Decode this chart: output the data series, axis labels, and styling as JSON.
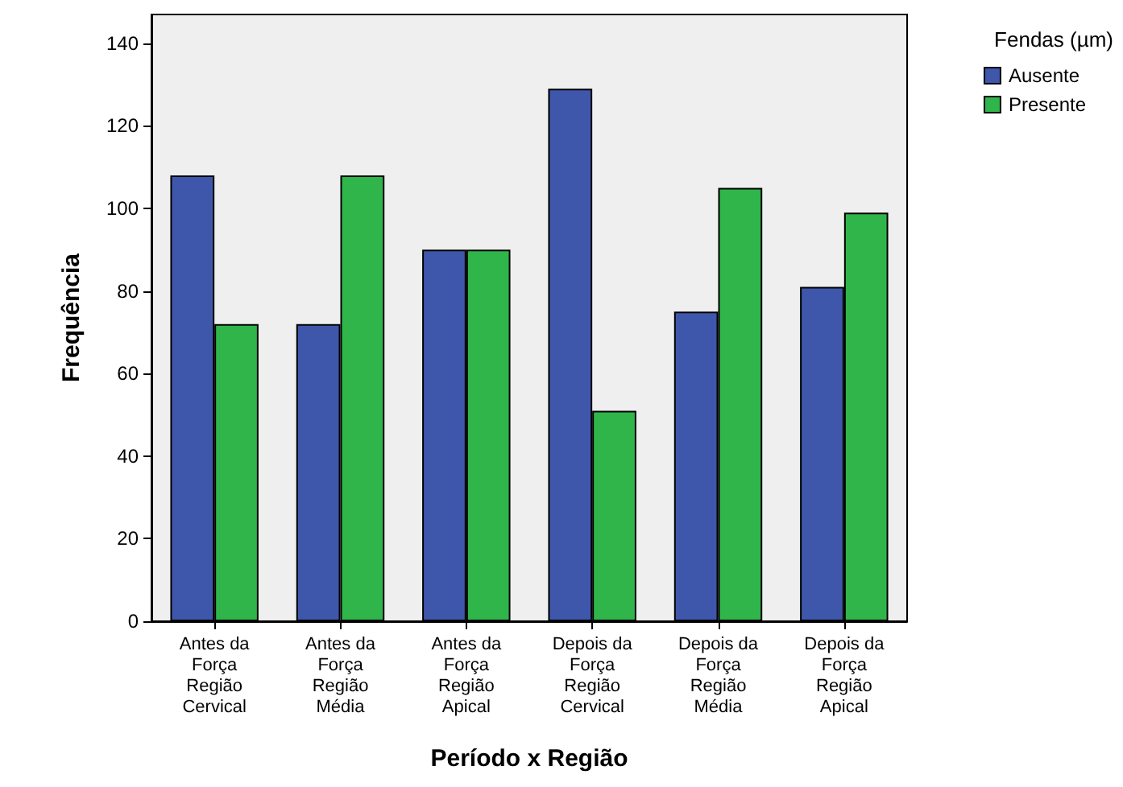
{
  "chart_data": {
    "type": "bar",
    "xlabel": "Período x Região",
    "ylabel": "Frequência",
    "legend_title": "Fendas (µm)",
    "categories": [
      "Antes da\nForça\nRegião\nCervical",
      "Antes da\nForça\nRegião\nMédia",
      "Antes da\nForça\nRegião\nApical",
      "Depois da\nForça\nRegião\nCervical",
      "Depois da\nForça\nRegião\nMédia",
      "Depois da\nForça\nRegião\nApical"
    ],
    "series": [
      {
        "name": "Ausente",
        "color": "#3f57ab",
        "values": [
          108,
          72,
          90,
          129,
          75,
          81
        ]
      },
      {
        "name": "Presente",
        "color": "#30b54a",
        "values": [
          72,
          108,
          90,
          51,
          105,
          99
        ]
      }
    ],
    "ylim": [
      0,
      147
    ],
    "yticks": [
      0,
      20,
      40,
      60,
      80,
      100,
      120,
      140
    ],
    "grid": false,
    "legend": "top right"
  }
}
